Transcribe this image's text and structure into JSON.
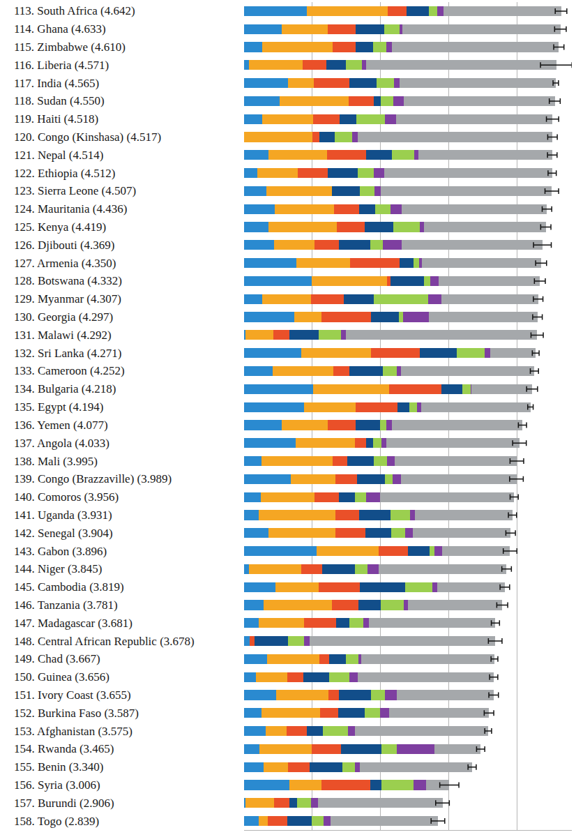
{
  "chart_data": {
    "type": "bar",
    "orientation": "horizontal",
    "stacked": true,
    "grid": true,
    "tick_labels": "y",
    "xlim": [
      0,
      4.8
    ],
    "xticks": [
      0,
      1,
      2,
      3,
      4
    ],
    "categories": [
      "113. South Africa (4.642)",
      "114. Ghana (4.633)",
      "115. Zimbabwe (4.610)",
      "116. Liberia (4.571)",
      "117. India (4.565)",
      "118. Sudan (4.550)",
      "119. Haiti (4.518)",
      "120. Congo (Kinshasa) (4.517)",
      "121. Nepal (4.514)",
      "122. Ethiopia (4.512)",
      "123. Sierra Leone (4.507)",
      "124. Mauritania (4.436)",
      "125. Kenya (4.419)",
      "126. Djibouti (4.369)",
      "127. Armenia (4.350)",
      "128. Botswana (4.332)",
      "129. Myanmar (4.307)",
      "130. Georgia (4.297)",
      "131. Malawi (4.292)",
      "132. Sri Lanka (4.271)",
      "133. Cameroon (4.252)",
      "134. Bulgaria (4.218)",
      "135. Egypt (4.194)",
      "136. Yemen (4.077)",
      "137. Angola (4.033)",
      "138. Mali (3.995)",
      "139. Congo (Brazzaville) (3.989)",
      "140. Comoros (3.956)",
      "141. Uganda (3.931)",
      "142. Senegal (3.904)",
      "143. Gabon (3.896)",
      "144. Niger (3.845)",
      "145. Cambodia (3.819)",
      "146. Tanzania (3.781)",
      "147. Madagascar (3.681)",
      "148. Central African Republic (3.678)",
      "149. Chad (3.667)",
      "150. Guinea (3.656)",
      "151. Ivory Coast (3.655)",
      "152. Burkina Faso (3.587)",
      "153. Afghanistan (3.575)",
      "154. Rwanda (3.465)",
      "155. Benin (3.340)",
      "156. Syria (3.006)",
      "157. Burundi (2.906)",
      "158. Togo (2.839)"
    ],
    "series": [
      {
        "color": "#2a8ad0",
        "values": [
          0.92,
          0.55,
          0.27,
          0.07,
          0.64,
          0.52,
          0.27,
          0,
          0.36,
          0.19,
          0.33,
          0.45,
          0.36,
          0.44,
          0.77,
          0.99,
          0.27,
          0.74,
          0.02,
          0.84,
          0.42,
          1.01,
          0.88,
          0.55,
          0.76,
          0.26,
          0.68,
          0.24,
          0.21,
          0.36,
          1.06,
          0.07,
          0.46,
          0.29,
          0.21,
          0.08,
          0.34,
          0.17,
          0.47,
          0.26,
          0.32,
          0.22,
          0.29,
          0.66,
          0.02,
          0.21
        ]
      },
      {
        "color": "#f5a623",
        "values": [
          1.18,
          0.68,
          1.03,
          0.79,
          0.38,
          1.01,
          0.74,
          1.0,
          0.86,
          0.6,
          0.96,
          0.87,
          1.0,
          0.59,
          0.78,
          1.1,
          0.71,
          0.39,
          0.41,
          1.02,
          0.89,
          1.11,
          0.75,
          0.68,
          0.86,
          1.04,
          0.66,
          0.79,
          1.13,
          0.98,
          0.91,
          0.77,
          0.63,
          1.0,
          0.67,
          0,
          0.76,
          0.46,
          0.77,
          0.85,
          0.3,
          0.77,
          0.35,
          0.47,
          0.42,
          0.14
        ]
      },
      {
        "color": "#ea5029",
        "values": [
          0.28,
          0.4,
          0.33,
          0.34,
          0.52,
          0.37,
          0.39,
          0.1,
          0.57,
          0.44,
          0,
          0.36,
          0.41,
          0.36,
          0.73,
          0.05,
          0.48,
          0.73,
          0.23,
          0.71,
          0.23,
          0.77,
          0.62,
          0.4,
          0.17,
          0.21,
          0.31,
          0.36,
          0.34,
          0.44,
          0.43,
          0.3,
          0.61,
          0.38,
          0.47,
          0.07,
          0.15,
          0.24,
          0.15,
          0.27,
          0.3,
          0.43,
          0.32,
          0.72,
          0.22,
          0.28
        ]
      },
      {
        "color": "#124e8a",
        "values": [
          0.33,
          0.42,
          0.26,
          0.29,
          0.4,
          0.1,
          0.24,
          0.23,
          0.38,
          0.43,
          0.41,
          0.24,
          0.42,
          0.46,
          0.2,
          0.49,
          0.44,
          0.41,
          0.43,
          0.54,
          0.49,
          0.31,
          0.17,
          0.36,
          0.1,
          0.39,
          0.41,
          0.23,
          0.46,
          0.37,
          0.32,
          0.48,
          0.66,
          0.33,
          0.19,
          0.49,
          0.24,
          0.38,
          0.47,
          0.39,
          0.23,
          0.59,
          0.48,
          0.16,
          0.12,
          0.36
        ]
      },
      {
        "color": "#9bcf4f",
        "values": [
          0.12,
          0.23,
          0.19,
          0.24,
          0.26,
          0.19,
          0.42,
          0.25,
          0.32,
          0.24,
          0.21,
          0.22,
          0.38,
          0.18,
          0.08,
          0.1,
          0.8,
          0.06,
          0.33,
          0.41,
          0.21,
          0.12,
          0.11,
          0.09,
          0.12,
          0.19,
          0.12,
          0.17,
          0.29,
          0.21,
          0.07,
          0.19,
          0.4,
          0.34,
          0.21,
          0.24,
          0.18,
          0.29,
          0.2,
          0.22,
          0.37,
          0.23,
          0.18,
          0.47,
          0.2,
          0.17
        ]
      },
      {
        "color": "#7e3fa0",
        "values": [
          0.09,
          0.04,
          0.08,
          0.06,
          0.08,
          0.15,
          0.17,
          0.08,
          0.06,
          0.15,
          0.09,
          0.17,
          0.06,
          0.28,
          0.04,
          0.12,
          0.19,
          0.38,
          0.07,
          0.09,
          0.06,
          0.01,
          0.06,
          0.08,
          0.07,
          0.12,
          0.12,
          0.2,
          0.07,
          0.11,
          0.11,
          0.16,
          0.07,
          0.06,
          0.08,
          0.08,
          0.05,
          0.12,
          0.18,
          0.13,
          0.1,
          0.55,
          0.08,
          0.19,
          0.1,
          0.11
        ]
      },
      {
        "color": "#a5a8ab",
        "values": [
          1.722,
          2.313,
          2.45,
          2.781,
          2.285,
          2.21,
          2.288,
          2.857,
          1.964,
          2.462,
          2.507,
          2.126,
          1.789,
          2.059,
          1.75,
          1.482,
          1.417,
          1.587,
          2.802,
          0.661,
          1.952,
          0.888,
          1.604,
          1.917,
          1.953,
          1.785,
          1.689,
          1.966,
          1.431,
          1.434,
          0.996,
          1.875,
          0.989,
          1.381,
          1.851,
          2.718,
          1.947,
          1.996,
          1.415,
          1.467,
          1.955,
          0.675,
          1.64,
          0.336,
          1.826,
          1.569
        ]
      }
    ],
    "errors": [
      0.085,
      0.085,
      0.075,
      0.23,
      0.04,
      0.08,
      0.09,
      0.07,
      0.07,
      0.06,
      0.1,
      0.07,
      0.075,
      0.13,
      0.08,
      0.08,
      0.07,
      0.07,
      0.09,
      0.05,
      0.06,
      0.08,
      0.04,
      0.06,
      0.1,
      0.1,
      0.1,
      0.06,
      0.06,
      0.07,
      0.1,
      0.07,
      0.07,
      0.08,
      0.06,
      0.1,
      0.05,
      0.06,
      0.07,
      0.07,
      0.05,
      0.06,
      0.06,
      0.14,
      0.1,
      0.1
    ]
  }
}
